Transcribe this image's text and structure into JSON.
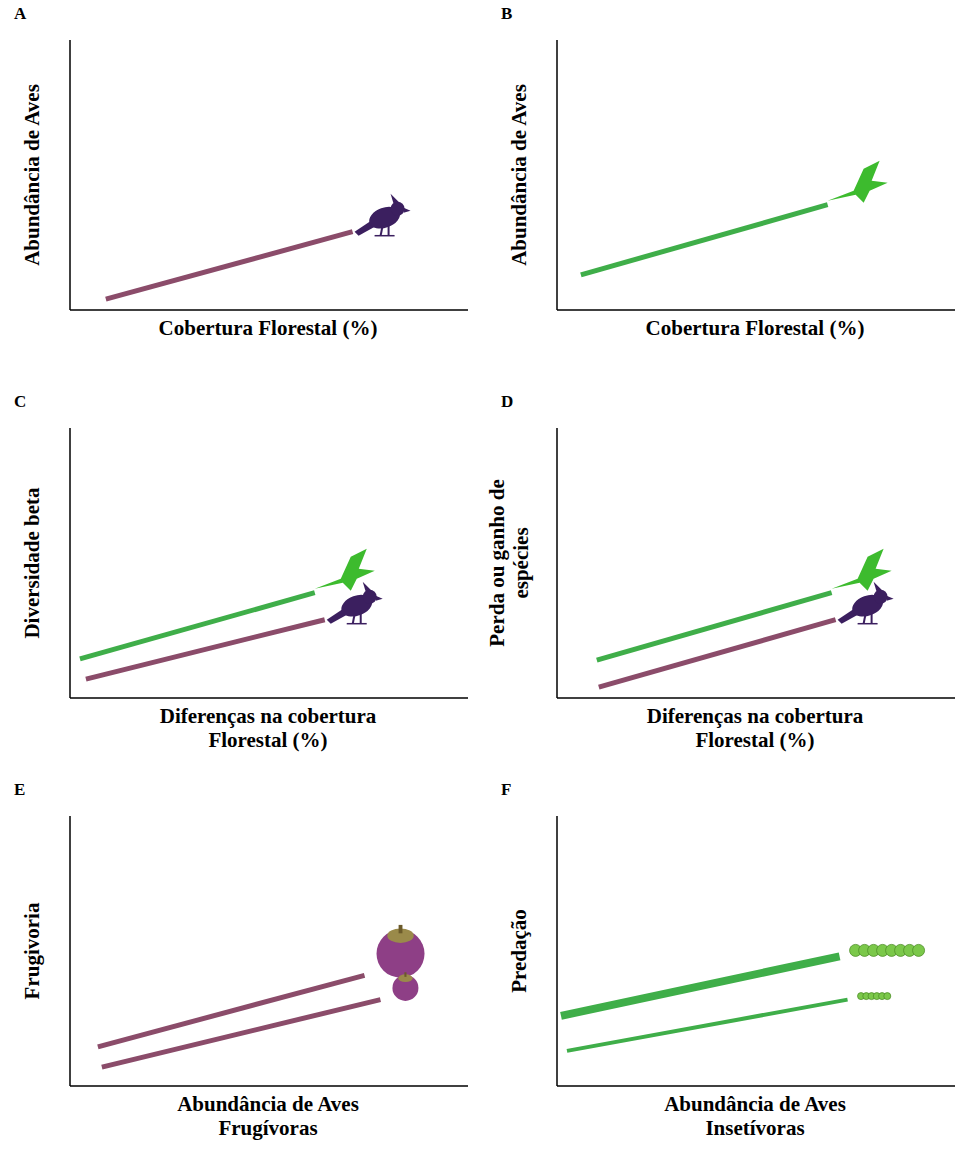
{
  "chart_data": [
    {
      "type": "line",
      "title": "A",
      "x_label": "Cobertura Florestal (%)",
      "y_label": "Abundância de Aves",
      "xlim": [
        0,
        10
      ],
      "ylim": [
        0,
        10
      ],
      "xticks": [],
      "yticks": [],
      "tick_labels": false,
      "series": [
        {
          "color": "#8b4c6a",
          "x": [
            0.9,
            7.1
          ],
          "values": [
            0.4,
            2.9
          ]
        }
      ]
    },
    {
      "type": "line",
      "title": "B",
      "x_label": "Cobertura Florestal (%)",
      "y_label": "Abundância de Aves",
      "xlim": [
        0,
        10
      ],
      "ylim": [
        0,
        10
      ],
      "xticks": [],
      "yticks": [],
      "tick_labels": false,
      "series": [
        {
          "color": "#3fae49",
          "x": [
            0.6,
            6.8
          ],
          "values": [
            1.3,
            3.9
          ]
        }
      ]
    },
    {
      "type": "line",
      "title": "C",
      "x_label": "Diferenças na cobertura Florestal (%)",
      "y_label": "Diversidade beta",
      "xlim": [
        0,
        10
      ],
      "ylim": [
        0,
        10
      ],
      "xticks": [],
      "yticks": [],
      "tick_labels": false,
      "series": [
        {
          "color": "#3fae49",
          "x": [
            0.25,
            6.15
          ],
          "values": [
            1.45,
            3.9
          ]
        },
        {
          "color": "#8b4c6a",
          "x": [
            0.4,
            6.4
          ],
          "values": [
            0.7,
            2.9
          ]
        }
      ]
    },
    {
      "type": "line",
      "title": "D",
      "x_label": "Diferenças na cobertura Florestal (%)",
      "y_label": "Perda ou ganho de espécies",
      "xlim": [
        0,
        10
      ],
      "ylim": [
        0,
        10
      ],
      "xticks": [],
      "yticks": [],
      "tick_labels": false,
      "series": [
        {
          "color": "#3fae49",
          "x": [
            1.0,
            6.9
          ],
          "values": [
            1.4,
            3.9
          ]
        },
        {
          "color": "#8b4c6a",
          "x": [
            1.05,
            7.0
          ],
          "values": [
            0.4,
            2.9
          ]
        }
      ]
    },
    {
      "type": "line",
      "title": "E",
      "x_label": "Abundância de Aves Frugívoras",
      "y_label": "Frugivoria",
      "xlim": [
        0,
        10
      ],
      "ylim": [
        0,
        10
      ],
      "xticks": [],
      "yticks": [],
      "tick_labels": false,
      "series": [
        {
          "color": "#8b4c6a",
          "x": [
            0.7,
            7.4
          ],
          "values": [
            1.45,
            4.1
          ]
        },
        {
          "color": "#8b4c6a",
          "x": [
            0.8,
            7.8
          ],
          "values": [
            0.7,
            3.2
          ]
        }
      ]
    },
    {
      "type": "line",
      "title": "F",
      "x_label": "Abundância de Aves Insetívoras",
      "y_label": "Predação",
      "xlim": [
        0,
        10
      ],
      "ylim": [
        0,
        10
      ],
      "xticks": [],
      "yticks": [],
      "tick_labels": false,
      "series": [
        {
          "color": "#3fae49",
          "x": [
            0.1,
            7.1
          ],
          "values": [
            2.6,
            4.8
          ]
        },
        {
          "color": "#3fae49",
          "x": [
            0.25,
            7.3
          ],
          "values": [
            1.3,
            3.2
          ]
        }
      ]
    }
  ]
}
